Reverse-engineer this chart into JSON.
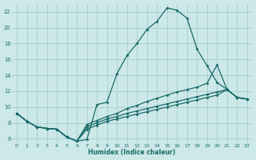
{
  "xlabel": "Humidex (Indice chaleur)",
  "xlim": [
    -0.5,
    23.5
  ],
  "ylim": [
    5.5,
    23.0
  ],
  "xticks": [
    0,
    1,
    2,
    3,
    4,
    5,
    6,
    7,
    8,
    9,
    10,
    11,
    12,
    13,
    14,
    15,
    16,
    17,
    18,
    19,
    20,
    21,
    22,
    23
  ],
  "yticks": [
    6,
    8,
    10,
    12,
    14,
    16,
    18,
    20,
    22
  ],
  "background_color": "#cce8e8",
  "grid_color": "#aacfcf",
  "line_color": "#1a6b6b",
  "lines": [
    {
      "x": [
        0,
        1,
        2,
        3,
        4,
        5,
        6,
        7,
        8,
        9,
        10,
        11,
        12,
        13,
        14,
        15,
        16,
        17,
        18,
        19,
        20,
        21,
        22,
        23
      ],
      "y": [
        9.2,
        8.2,
        7.5,
        7.3,
        7.2,
        6.2,
        5.7,
        5.9,
        10.3,
        10.6,
        14.2,
        16.5,
        18.0,
        19.8,
        20.8,
        22.5,
        22.2,
        21.2,
        17.3,
        15.2,
        13.1,
        12.2,
        11.2,
        11.0
      ]
    },
    {
      "x": [
        0,
        1,
        2,
        3,
        4,
        5,
        6,
        7,
        8,
        9,
        10,
        11,
        12,
        13,
        14,
        15,
        16,
        17,
        18,
        19,
        20,
        21,
        22,
        23
      ],
      "y": [
        9.2,
        8.2,
        7.5,
        7.3,
        7.2,
        6.2,
        5.7,
        7.8,
        8.3,
        8.8,
        9.2,
        9.8,
        10.2,
        10.7,
        11.1,
        11.5,
        11.9,
        12.2,
        12.5,
        13.0,
        15.3,
        12.2,
        11.2,
        11.0
      ]
    },
    {
      "x": [
        0,
        1,
        2,
        3,
        4,
        5,
        6,
        7,
        8,
        9,
        10,
        11,
        12,
        13,
        14,
        15,
        16,
        17,
        18,
        19,
        20,
        21,
        22,
        23
      ],
      "y": [
        9.2,
        8.2,
        7.5,
        7.3,
        7.2,
        6.2,
        5.7,
        7.5,
        8.0,
        8.5,
        8.8,
        9.2,
        9.5,
        9.8,
        10.1,
        10.4,
        10.7,
        11.0,
        11.3,
        11.6,
        11.9,
        12.2,
        11.2,
        11.0
      ]
    },
    {
      "x": [
        0,
        1,
        2,
        3,
        4,
        5,
        6,
        7,
        8,
        9,
        10,
        11,
        12,
        13,
        14,
        15,
        16,
        17,
        18,
        19,
        20,
        21,
        22,
        23
      ],
      "y": [
        9.2,
        8.2,
        7.5,
        7.3,
        7.2,
        6.2,
        5.7,
        7.2,
        7.7,
        8.2,
        8.5,
        8.8,
        9.1,
        9.4,
        9.7,
        10.0,
        10.3,
        10.6,
        10.9,
        11.2,
        11.5,
        12.2,
        11.2,
        11.0
      ]
    }
  ]
}
